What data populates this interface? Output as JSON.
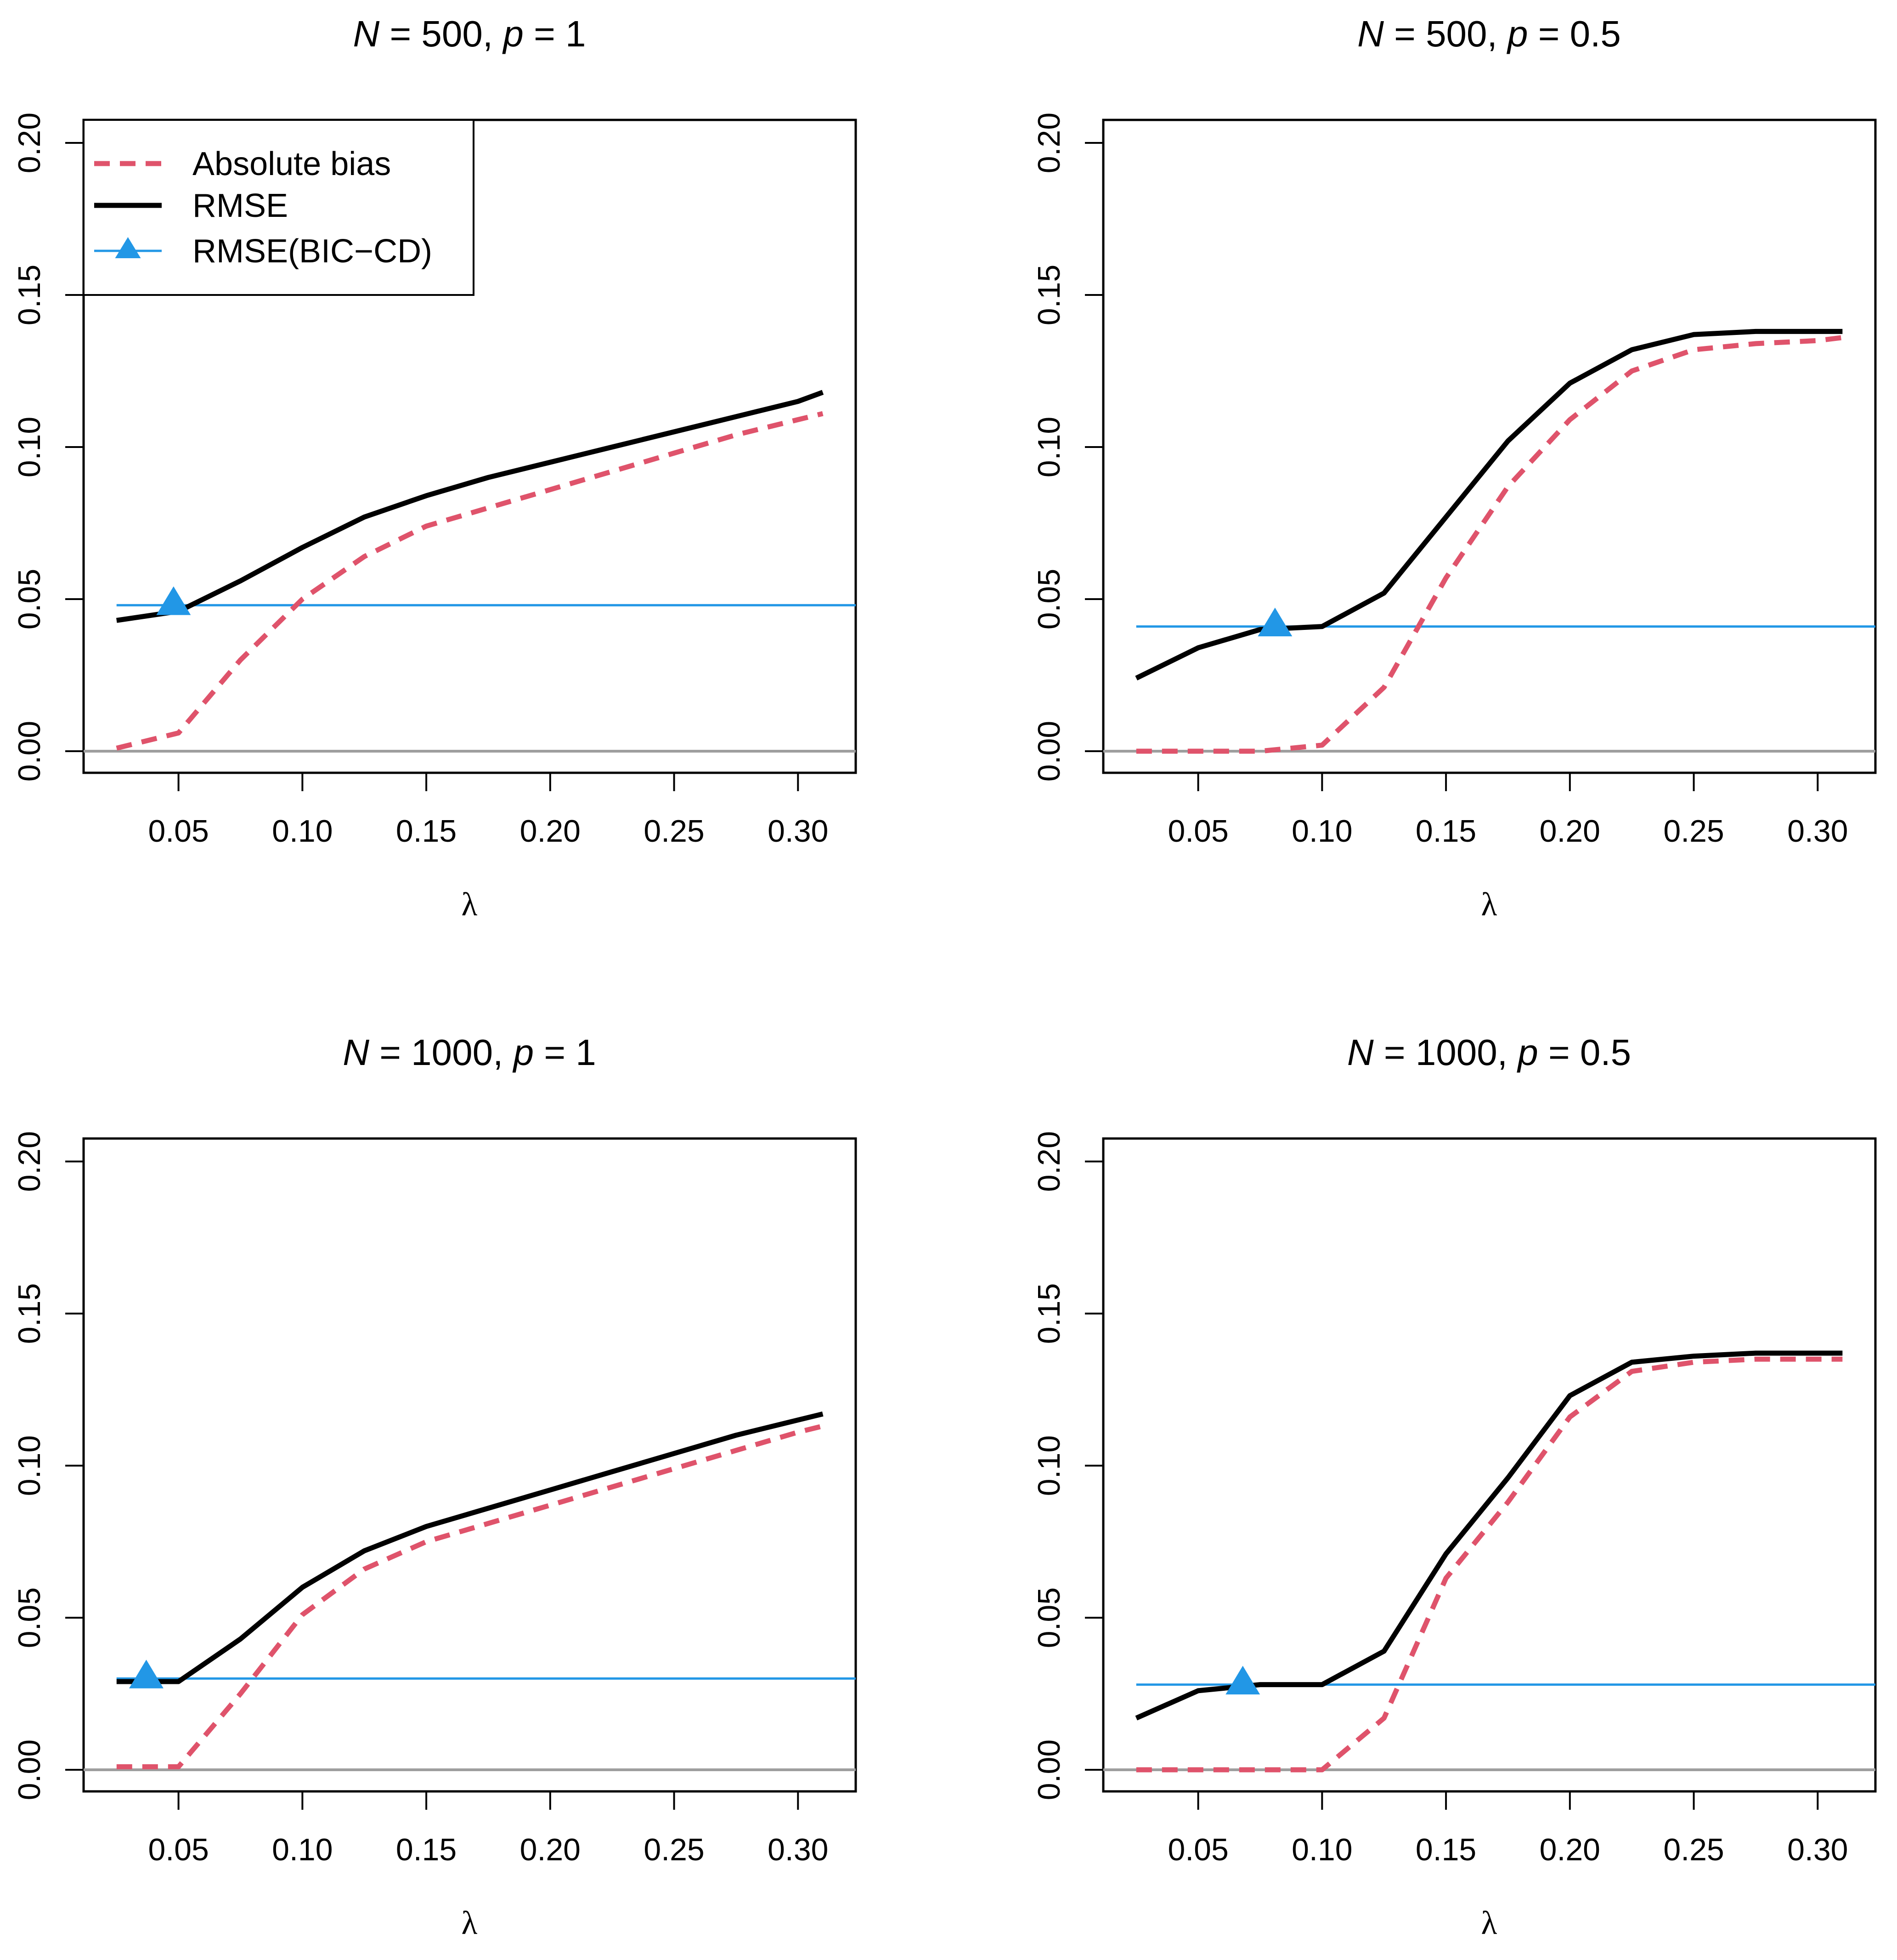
{
  "colors": {
    "absolute_bias": "#DF536B",
    "rmse": "#000000",
    "rmse_bic_cd": "#2297E6",
    "zero_line": "#9E9E9E",
    "axes": "#000000"
  },
  "legend": {
    "items": [
      {
        "label": "Absolute bias",
        "series": "absolute_bias",
        "style": "dashed"
      },
      {
        "label": "RMSE",
        "series": "rmse",
        "style": "solid"
      },
      {
        "label": "RMSE(BIC−CD)",
        "series": "rmse_bic_cd",
        "style": "triangle-line"
      }
    ]
  },
  "chart_data": [
    {
      "type": "line",
      "title_parts": {
        "n_var": "N",
        "n_val": "500",
        "p_var": "p",
        "p_val": "1"
      },
      "xlabel": "λ",
      "ylabel": "",
      "xlim": [
        0.025,
        0.31
      ],
      "ylim": [
        0,
        0.2
      ],
      "xticks": [
        0.05,
        0.1,
        0.15,
        0.2,
        0.25,
        0.3
      ],
      "xtick_labels": [
        "0.05",
        "0.10",
        "0.15",
        "0.20",
        "0.25",
        "0.30"
      ],
      "yticks": [
        0,
        0.05,
        0.1,
        0.15,
        0.2
      ],
      "ytick_labels": [
        "0.00",
        "0.05",
        "0.10",
        "0.15",
        "0.20"
      ],
      "x": [
        0.025,
        0.05,
        0.075,
        0.1,
        0.125,
        0.15,
        0.175,
        0.2,
        0.225,
        0.25,
        0.275,
        0.3,
        0.31
      ],
      "series": [
        {
          "name": "Absolute bias",
          "values": [
            0.001,
            0.006,
            0.03,
            0.05,
            0.064,
            0.074,
            0.08,
            0.086,
            0.092,
            0.098,
            0.104,
            0.109,
            0.111
          ]
        },
        {
          "name": "RMSE",
          "values": [
            0.043,
            0.046,
            0.056,
            0.067,
            0.077,
            0.084,
            0.09,
            0.095,
            0.1,
            0.105,
            0.11,
            0.115,
            0.118
          ]
        }
      ],
      "bic_cd": {
        "lambda": 0.048,
        "rmse": 0.048
      },
      "legend": true
    },
    {
      "type": "line",
      "title_parts": {
        "n_var": "N",
        "n_val": "500",
        "p_var": "p",
        "p_val": "0.5"
      },
      "xlabel": "λ",
      "ylabel": "",
      "xlim": [
        0.025,
        0.31
      ],
      "ylim": [
        0,
        0.2
      ],
      "xticks": [
        0.05,
        0.1,
        0.15,
        0.2,
        0.25,
        0.3
      ],
      "xtick_labels": [
        "0.05",
        "0.10",
        "0.15",
        "0.20",
        "0.25",
        "0.30"
      ],
      "yticks": [
        0,
        0.05,
        0.1,
        0.15,
        0.2
      ],
      "ytick_labels": [
        "0.00",
        "0.05",
        "0.10",
        "0.15",
        "0.20"
      ],
      "x": [
        0.025,
        0.05,
        0.075,
        0.1,
        0.125,
        0.15,
        0.175,
        0.2,
        0.225,
        0.25,
        0.275,
        0.3,
        0.31
      ],
      "series": [
        {
          "name": "Absolute bias",
          "values": [
            0.0,
            0.0,
            0.0,
            0.002,
            0.021,
            0.057,
            0.087,
            0.109,
            0.125,
            0.132,
            0.134,
            0.135,
            0.136
          ]
        },
        {
          "name": "RMSE",
          "values": [
            0.024,
            0.034,
            0.04,
            0.041,
            0.052,
            0.077,
            0.102,
            0.121,
            0.132,
            0.137,
            0.138,
            0.138,
            0.138
          ]
        }
      ],
      "bic_cd": {
        "lambda": 0.081,
        "rmse": 0.041
      },
      "legend": false
    },
    {
      "type": "line",
      "title_parts": {
        "n_var": "N",
        "n_val": "1000",
        "p_var": "p",
        "p_val": "1"
      },
      "xlabel": "λ",
      "ylabel": "",
      "xlim": [
        0.025,
        0.31
      ],
      "ylim": [
        0,
        0.2
      ],
      "xticks": [
        0.05,
        0.1,
        0.15,
        0.2,
        0.25,
        0.3
      ],
      "xtick_labels": [
        "0.05",
        "0.10",
        "0.15",
        "0.20",
        "0.25",
        "0.30"
      ],
      "yticks": [
        0,
        0.05,
        0.1,
        0.15,
        0.2
      ],
      "ytick_labels": [
        "0.00",
        "0.05",
        "0.10",
        "0.15",
        "0.20"
      ],
      "x": [
        0.025,
        0.05,
        0.075,
        0.1,
        0.125,
        0.15,
        0.175,
        0.2,
        0.225,
        0.25,
        0.275,
        0.3,
        0.31
      ],
      "series": [
        {
          "name": "Absolute bias",
          "values": [
            0.001,
            0.001,
            0.025,
            0.051,
            0.066,
            0.075,
            0.081,
            0.087,
            0.093,
            0.099,
            0.105,
            0.111,
            0.113
          ]
        },
        {
          "name": "RMSE",
          "values": [
            0.029,
            0.029,
            0.043,
            0.06,
            0.072,
            0.08,
            0.086,
            0.092,
            0.098,
            0.104,
            0.11,
            0.115,
            0.117
          ]
        }
      ],
      "bic_cd": {
        "lambda": 0.037,
        "rmse": 0.03
      },
      "legend": false
    },
    {
      "type": "line",
      "title_parts": {
        "n_var": "N",
        "n_val": "1000",
        "p_var": "p",
        "p_val": "0.5"
      },
      "xlabel": "λ",
      "ylabel": "",
      "xlim": [
        0.025,
        0.31
      ],
      "ylim": [
        0,
        0.2
      ],
      "xticks": [
        0.05,
        0.1,
        0.15,
        0.2,
        0.25,
        0.3
      ],
      "xtick_labels": [
        "0.05",
        "0.10",
        "0.15",
        "0.20",
        "0.25",
        "0.30"
      ],
      "yticks": [
        0,
        0.05,
        0.1,
        0.15,
        0.2
      ],
      "ytick_labels": [
        "0.00",
        "0.05",
        "0.10",
        "0.15",
        "0.20"
      ],
      "x": [
        0.025,
        0.05,
        0.075,
        0.1,
        0.125,
        0.15,
        0.175,
        0.2,
        0.225,
        0.25,
        0.275,
        0.3,
        0.31
      ],
      "series": [
        {
          "name": "Absolute bias",
          "values": [
            0.0,
            0.0,
            0.0,
            0.0,
            0.017,
            0.063,
            0.088,
            0.116,
            0.131,
            0.134,
            0.135,
            0.135,
            0.135
          ]
        },
        {
          "name": "RMSE",
          "values": [
            0.017,
            0.026,
            0.028,
            0.028,
            0.039,
            0.071,
            0.096,
            0.123,
            0.134,
            0.136,
            0.137,
            0.137,
            0.137
          ]
        }
      ],
      "bic_cd": {
        "lambda": 0.068,
        "rmse": 0.028
      },
      "legend": false
    }
  ]
}
